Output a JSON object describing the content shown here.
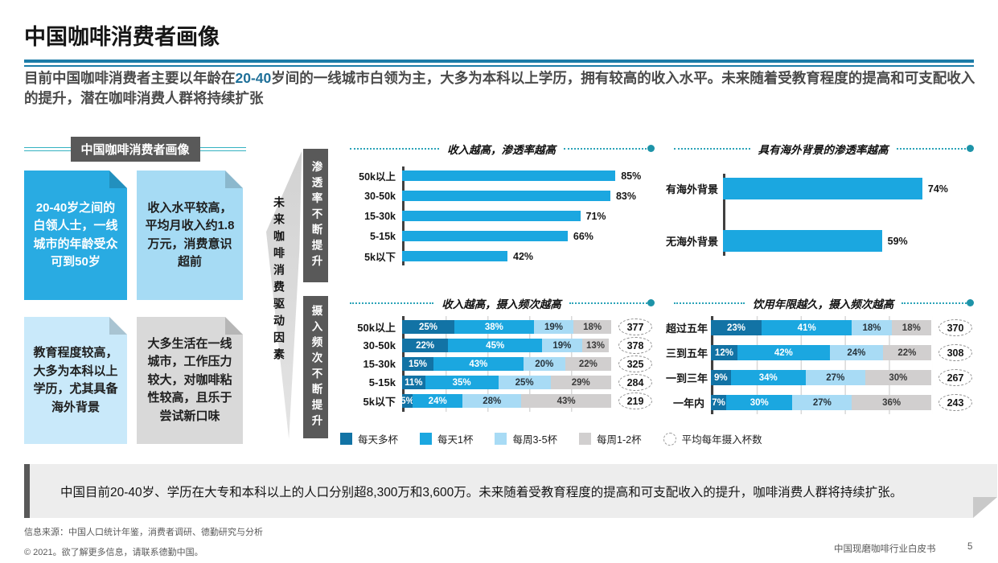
{
  "slide": {
    "title": "中国咖啡消费者画像",
    "subtitle": {
      "pre": "目前中国咖啡消费者主要以年龄在",
      "highlight": "20-40",
      "post": "岁间的一线城市白领为主，大多为本科以上学历，拥有较高的收入水平。未来随着受教育程度的提高和可支配收入的提升，潜在咖啡消费人群将持续扩张"
    },
    "summary": "中国目前20-40岁、学历在大专和本科以上的人口分别超8,300万和3,600万。未来随着受教育程度的提高和可支配收入的提升，咖啡消费人群将持续扩张。",
    "footer": {
      "source": "信息来源：中国人口统计年鉴，消费者调研、德勤研究与分析",
      "copyright": "© 2021。欲了解更多信息，请联系德勤中国。",
      "doc_title": "中国现磨咖啡行业白皮书",
      "page_number": "5"
    }
  },
  "profile": {
    "header": "中国咖啡消费者画像",
    "arrow_label": "未来咖啡消费驱动因素",
    "cards": [
      {
        "text": "20-40岁之间的白领人士，一线城市的年龄受众可到50岁",
        "bg": "#29ABE2",
        "color": "#ffffff"
      },
      {
        "text": "收入水平较高，平均月收入约1.8万元，消费意识超前",
        "bg": "#A6DBF4",
        "color": "#1f1f1f"
      },
      {
        "text": "教育程度较高，大多为本科以上学历，尤其具备海外背景",
        "bg": "#C9E9FA",
        "color": "#1f1f1f"
      },
      {
        "text": "大多生活在一线城市，工作压力较大，对咖啡粘性较高，且乐于尝试新口味",
        "bg": "#D9D9D9",
        "color": "#1f1f1f"
      }
    ]
  },
  "side_labels": [
    "渗透率不断提升",
    "摄入频次不断提升"
  ],
  "legend": {
    "items": [
      {
        "label": "每天多杯",
        "color": "#1273A5"
      },
      {
        "label": "每天1杯",
        "color": "#1BA7E0"
      },
      {
        "label": "每周3-5杯",
        "color": "#A8DBF5"
      },
      {
        "label": "每周1-2杯",
        "color": "#D1CFCF"
      }
    ],
    "circle_item": "平均每年摄入杯数"
  },
  "chart_data": [
    {
      "type": "bar",
      "title": "收入越高，渗透率越高",
      "categories": [
        "50k以上",
        "30-50k",
        "15-30k",
        "5-15k",
        "5k以下"
      ],
      "values": [
        85,
        83,
        71,
        66,
        42
      ],
      "value_suffix": "%",
      "xlim": [
        0,
        100
      ],
      "bar_color": "#1BA7E0",
      "legend_position": "none",
      "grid": false
    },
    {
      "type": "bar",
      "title": "具有海外背景的渗透率越高",
      "categories": [
        "有海外背景",
        "无海外背景"
      ],
      "values": [
        74,
        59
      ],
      "value_suffix": "%",
      "xlim": [
        0,
        100
      ],
      "bar_color": "#1BA7E0",
      "legend_position": "none",
      "grid": false
    },
    {
      "type": "stacked-bar",
      "title": "收入越高，摄入频次越高",
      "categories": [
        "50k以上",
        "30-50k",
        "15-30k",
        "5-15k",
        "5k以下"
      ],
      "series": [
        {
          "name": "每天多杯",
          "values": [
            25,
            22,
            15,
            11,
            5
          ]
        },
        {
          "name": "每天1杯",
          "values": [
            38,
            45,
            43,
            35,
            24
          ]
        },
        {
          "name": "每周3-5杯",
          "values": [
            19,
            19,
            20,
            25,
            28
          ]
        },
        {
          "name": "每周1-2杯",
          "values": [
            18,
            13,
            22,
            29,
            43
          ]
        }
      ],
      "annotations": {
        "label": "平均每年摄入杯数",
        "values": [
          377,
          378,
          325,
          284,
          219
        ]
      },
      "xlim": [
        0,
        100
      ],
      "grid": true,
      "legend_position": "bottom"
    },
    {
      "type": "stacked-bar",
      "title": "饮用年限越久，摄入频次越高",
      "categories": [
        "超过五年",
        "三到五年",
        "一到三年",
        "一年内"
      ],
      "series": [
        {
          "name": "每天多杯",
          "values": [
            23,
            12,
            9,
            7
          ]
        },
        {
          "name": "每天1杯",
          "values": [
            41,
            42,
            34,
            30
          ]
        },
        {
          "name": "每周3-5杯",
          "values": [
            18,
            24,
            27,
            27
          ]
        },
        {
          "name": "每周1-2杯",
          "values": [
            18,
            22,
            30,
            36
          ]
        }
      ],
      "annotations": {
        "label": "平均每年摄入杯数",
        "values": [
          370,
          308,
          267,
          243
        ]
      },
      "xlim": [
        0,
        100
      ],
      "grid": true,
      "legend_position": "bottom"
    }
  ],
  "colors": {
    "divider_blue": "#1C7CA8",
    "subtitle_highlight": "#1F7099",
    "teal_line": "#35B2C2",
    "dark_gray_box": "#595959",
    "axis": "#404040",
    "dotted_rule": "#2BA3B8",
    "rule_dot": "#1D93A8",
    "summary_bg": "#EDEDED"
  }
}
